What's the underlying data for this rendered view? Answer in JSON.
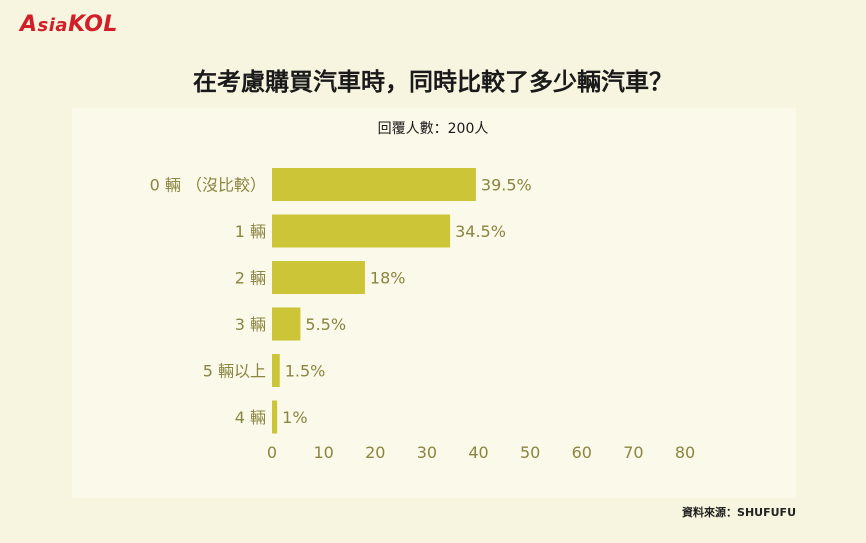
{
  "logo": {
    "text": "AsiaKOL",
    "color": "#d11f2a"
  },
  "header": {
    "title": "在考慮購買汽車時，同時比較了多少輛汽車？",
    "subtitle": "回覆人數：200人"
  },
  "footer": {
    "source": "資料來源：SHUFUFU"
  },
  "chart_data": {
    "type": "bar",
    "orientation": "horizontal",
    "categories": [
      "0 輛 （沒比較）",
      "1 輛",
      "2 輛",
      "3 輛",
      "5 輛以上",
      "4 輛"
    ],
    "values": [
      39.5,
      34.5,
      18,
      5.5,
      1.5,
      1
    ],
    "value_labels": [
      "39.5%",
      "34.5%",
      "18%",
      "5.5%",
      "1.5%",
      "1%"
    ],
    "xlim": [
      0,
      80
    ],
    "xticks": [
      0,
      10,
      20,
      30,
      40,
      50,
      60,
      70,
      80
    ],
    "grid": false,
    "bar_color": "#cbc537",
    "text_color": "#8a8540"
  }
}
